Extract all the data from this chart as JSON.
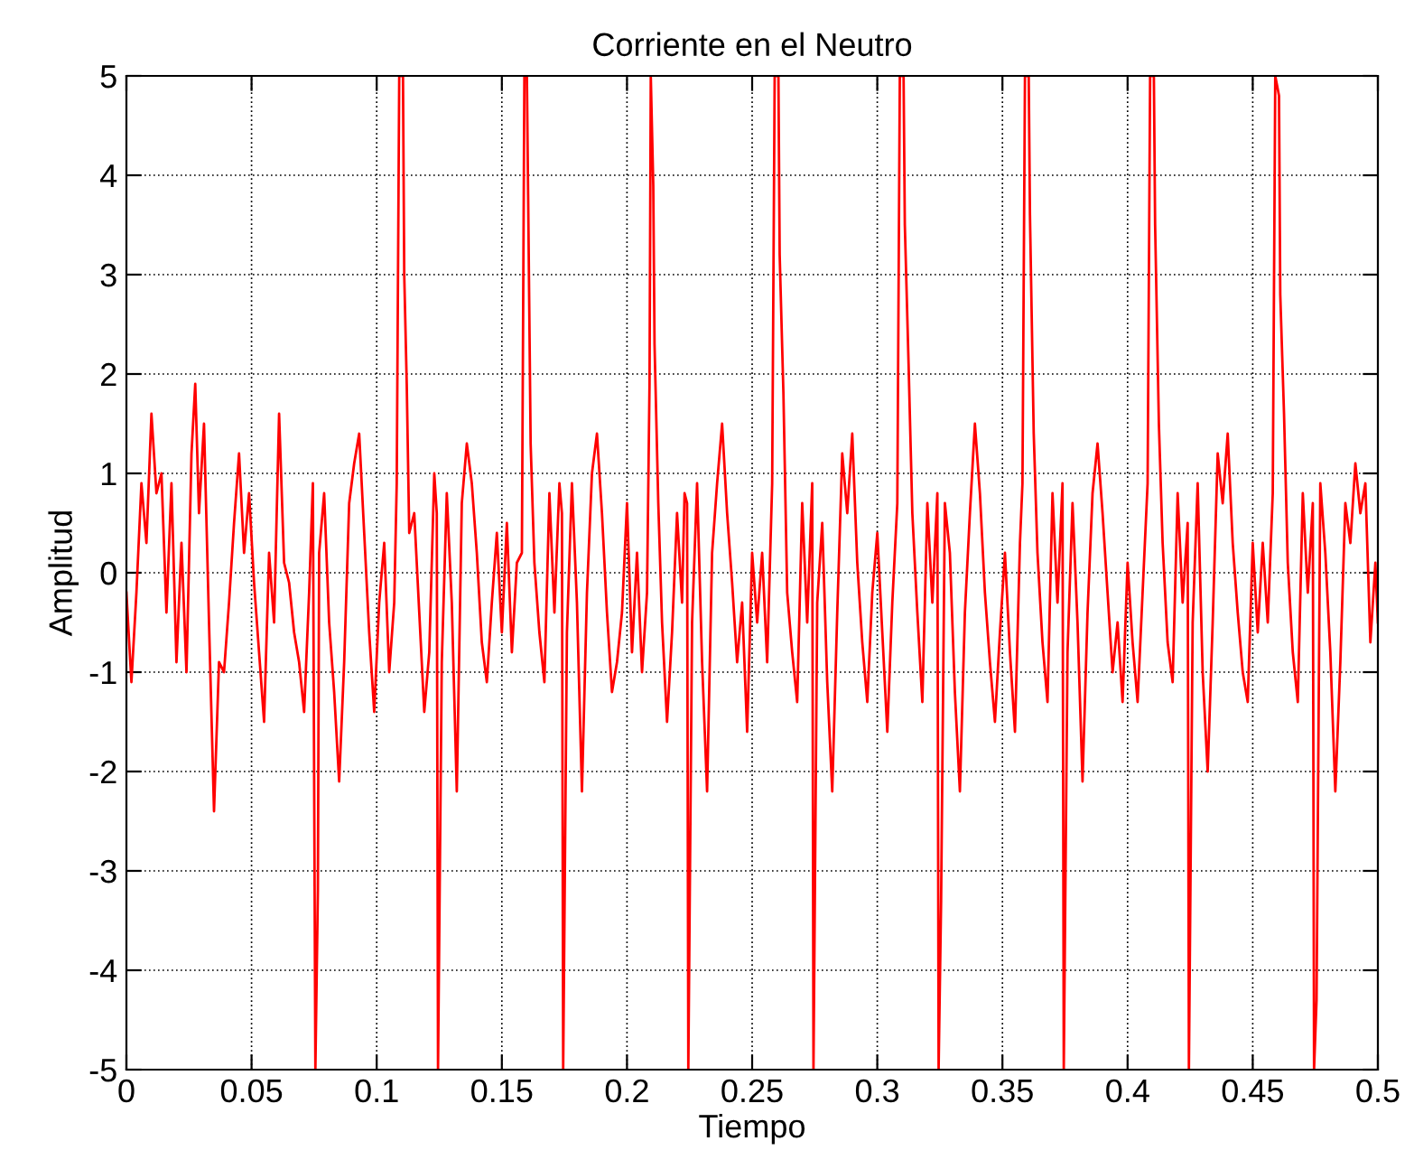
{
  "chart_data": {
    "type": "line",
    "title": "Corriente en el Neutro",
    "xlabel": "Tiempo",
    "ylabel": "Amplitud",
    "xlim": [
      0,
      0.5
    ],
    "xticks": [
      0,
      0.05,
      0.1,
      0.15,
      0.2,
      0.25,
      0.3,
      0.35,
      0.4,
      0.45,
      0.5
    ],
    "ylim": [
      -5,
      5
    ],
    "yticks": [
      -5,
      -4,
      -3,
      -2,
      -1,
      0,
      1,
      2,
      3,
      4,
      5
    ],
    "grid": true,
    "legend": false,
    "series": [
      {
        "color": "#ff0000",
        "x": [
          0,
          0.002,
          0.004,
          0.006,
          0.008,
          0.01,
          0.012,
          0.014,
          0.016,
          0.018,
          0.02,
          0.022,
          0.024,
          0.026,
          0.0275,
          0.029,
          0.031,
          0.033,
          0.035,
          0.037,
          0.039,
          0.041,
          0.043,
          0.045,
          0.047,
          0.049,
          0.051,
          0.053,
          0.055,
          0.057,
          0.059,
          0.061,
          0.063,
          0.065,
          0.067,
          0.069,
          0.071,
          0.073,
          0.0745,
          0.0755,
          0.0765,
          0.077,
          0.079,
          0.081,
          0.083,
          0.085,
          0.087,
          0.089,
          0.091,
          0.093,
          0.095,
          0.097,
          0.099,
          0.101,
          0.103,
          0.105,
          0.107,
          0.108,
          0.109,
          0.1105,
          0.111,
          0.112,
          0.113,
          0.115,
          0.117,
          0.119,
          0.121,
          0.123,
          0.124,
          0.1245,
          0.126,
          0.128,
          0.13,
          0.132,
          0.134,
          0.136,
          0.138,
          0.14,
          0.142,
          0.144,
          0.146,
          0.148,
          0.15,
          0.152,
          0.154,
          0.156,
          0.158,
          0.159,
          0.16,
          0.1605,
          0.1615,
          0.163,
          0.165,
          0.167,
          0.169,
          0.171,
          0.173,
          0.174,
          0.1745,
          0.176,
          0.178,
          0.18,
          0.182,
          0.184,
          0.186,
          0.188,
          0.19,
          0.192,
          0.194,
          0.196,
          0.198,
          0.2,
          0.202,
          0.204,
          0.206,
          0.208,
          0.209,
          0.2095,
          0.2105,
          0.211,
          0.2125,
          0.214,
          0.216,
          0.218,
          0.22,
          0.222,
          0.223,
          0.224,
          0.2245,
          0.226,
          0.228,
          0.23,
          0.232,
          0.234,
          0.236,
          0.238,
          0.24,
          0.242,
          0.244,
          0.246,
          0.248,
          0.25,
          0.252,
          0.254,
          0.256,
          0.258,
          0.259,
          0.2605,
          0.261,
          0.2625,
          0.264,
          0.266,
          0.268,
          0.27,
          0.272,
          0.274,
          0.2745,
          0.276,
          0.278,
          0.28,
          0.282,
          0.284,
          0.286,
          0.288,
          0.29,
          0.292,
          0.294,
          0.296,
          0.298,
          0.3,
          0.302,
          0.304,
          0.306,
          0.308,
          0.309,
          0.3105,
          0.311,
          0.3125,
          0.314,
          0.316,
          0.318,
          0.32,
          0.322,
          0.324,
          0.3245,
          0.3255,
          0.327,
          0.329,
          0.331,
          0.333,
          0.335,
          0.337,
          0.339,
          0.341,
          0.343,
          0.345,
          0.347,
          0.349,
          0.351,
          0.353,
          0.355,
          0.357,
          0.358,
          0.359,
          0.3605,
          0.361,
          0.3625,
          0.364,
          0.366,
          0.368,
          0.37,
          0.372,
          0.374,
          0.3745,
          0.376,
          0.378,
          0.38,
          0.382,
          0.384,
          0.386,
          0.388,
          0.39,
          0.392,
          0.394,
          0.396,
          0.398,
          0.4,
          0.402,
          0.404,
          0.406,
          0.408,
          0.409,
          0.4105,
          0.411,
          0.4125,
          0.414,
          0.416,
          0.418,
          0.42,
          0.422,
          0.424,
          0.4245,
          0.426,
          0.428,
          0.43,
          0.432,
          0.434,
          0.436,
          0.438,
          0.44,
          0.442,
          0.444,
          0.446,
          0.448,
          0.45,
          0.452,
          0.454,
          0.456,
          0.458,
          0.459,
          0.4605,
          0.461,
          0.4625,
          0.464,
          0.466,
          0.468,
          0.47,
          0.472,
          0.474,
          0.4745,
          0.4755,
          0.477,
          0.479,
          0.481,
          0.483,
          0.485,
          0.487,
          0.489,
          0.491,
          0.493,
          0.495,
          0.497,
          0.499,
          0.5
        ],
        "values": [
          -0.2,
          -1.1,
          -0.2,
          0.9,
          0.3,
          1.6,
          0.8,
          1.0,
          -0.4,
          0.9,
          -0.9,
          0.3,
          -1.0,
          1.2,
          1.9,
          0.6,
          1.5,
          -0.5,
          -2.4,
          -0.9,
          -1.0,
          -0.3,
          0.5,
          1.2,
          0.2,
          0.8,
          -0.1,
          -0.8,
          -1.5,
          0.2,
          -0.5,
          1.6,
          0.1,
          -0.1,
          -0.6,
          -0.9,
          -1.4,
          -0.2,
          0.9,
          -5,
          -3.2,
          0.2,
          0.8,
          -0.5,
          -1.2,
          -2.1,
          -0.9,
          0.7,
          1.1,
          1.4,
          0.4,
          -0.6,
          -1.4,
          -0.3,
          0.3,
          -1.0,
          -0.3,
          0.9,
          5,
          5,
          3.0,
          1.9,
          0.4,
          0.6,
          -0.4,
          -1.4,
          -0.8,
          1.0,
          0.6,
          -5,
          -0.9,
          0.8,
          -0.3,
          -2.2,
          0.7,
          1.3,
          0.9,
          0.2,
          -0.7,
          -1.1,
          -0.3,
          0.4,
          -0.6,
          0.5,
          -0.8,
          0.1,
          0.2,
          5,
          5,
          3.8,
          1.3,
          0.1,
          -0.6,
          -1.1,
          0.8,
          -0.4,
          0.9,
          0.6,
          -5,
          -0.6,
          0.9,
          -0.3,
          -2.2,
          -0.2,
          1.0,
          1.4,
          0.6,
          -0.4,
          -1.2,
          -0.9,
          -0.4,
          0.7,
          -0.8,
          0.2,
          -1.0,
          -0.2,
          1.9,
          5,
          3.9,
          2.3,
          0.7,
          -0.5,
          -1.5,
          -0.6,
          0.6,
          -0.3,
          0.8,
          0.7,
          -5,
          -0.5,
          0.9,
          -0.9,
          -2.2,
          0.2,
          0.9,
          1.5,
          0.6,
          -0.1,
          -0.9,
          -0.3,
          -1.6,
          0.2,
          -0.5,
          0.2,
          -0.9,
          0.9,
          5,
          5,
          3.2,
          1.8,
          -0.2,
          -0.8,
          -1.3,
          0.7,
          -0.5,
          0.9,
          -5,
          -0.3,
          0.5,
          -1.1,
          -2.2,
          -0.4,
          1.2,
          0.6,
          1.4,
          0.1,
          -0.7,
          -1.3,
          -0.2,
          0.4,
          -0.6,
          -1.6,
          -0.3,
          0.7,
          5,
          5,
          3.5,
          2.1,
          0.6,
          -0.4,
          -1.3,
          0.7,
          -0.3,
          0.8,
          -5,
          -3.3,
          0.7,
          0.2,
          -1.2,
          -2.2,
          -0.4,
          0.6,
          1.5,
          0.8,
          -0.2,
          -0.9,
          -1.5,
          -0.6,
          0.2,
          -0.8,
          -1.6,
          0.3,
          0.9,
          5,
          5,
          3.6,
          1.4,
          0.2,
          -0.7,
          -1.3,
          0.8,
          -0.3,
          0.9,
          -5,
          -0.8,
          0.7,
          -0.5,
          -2.1,
          -0.4,
          0.8,
          1.3,
          0.6,
          -0.2,
          -1.0,
          -0.5,
          -1.3,
          0.1,
          -0.7,
          -1.3,
          -0.2,
          0.9,
          5,
          5,
          3.5,
          1.5,
          0.3,
          -0.7,
          -1.1,
          0.8,
          -0.3,
          0.5,
          -5,
          -0.5,
          0.9,
          -1.0,
          -2.0,
          -0.5,
          1.2,
          0.7,
          1.4,
          0.3,
          -0.4,
          -1.0,
          -1.3,
          0.3,
          -0.6,
          0.3,
          -0.5,
          0.8,
          5,
          4.8,
          2.8,
          1.6,
          0.1,
          -0.8,
          -1.3,
          0.8,
          -0.2,
          0.7,
          -5,
          -4.3,
          0.9,
          0.2,
          -0.8,
          -2.2,
          -0.9,
          0.7,
          0.3,
          1.1,
          0.6,
          0.9,
          -0.7,
          0.1,
          -0.5
        ]
      }
    ]
  }
}
